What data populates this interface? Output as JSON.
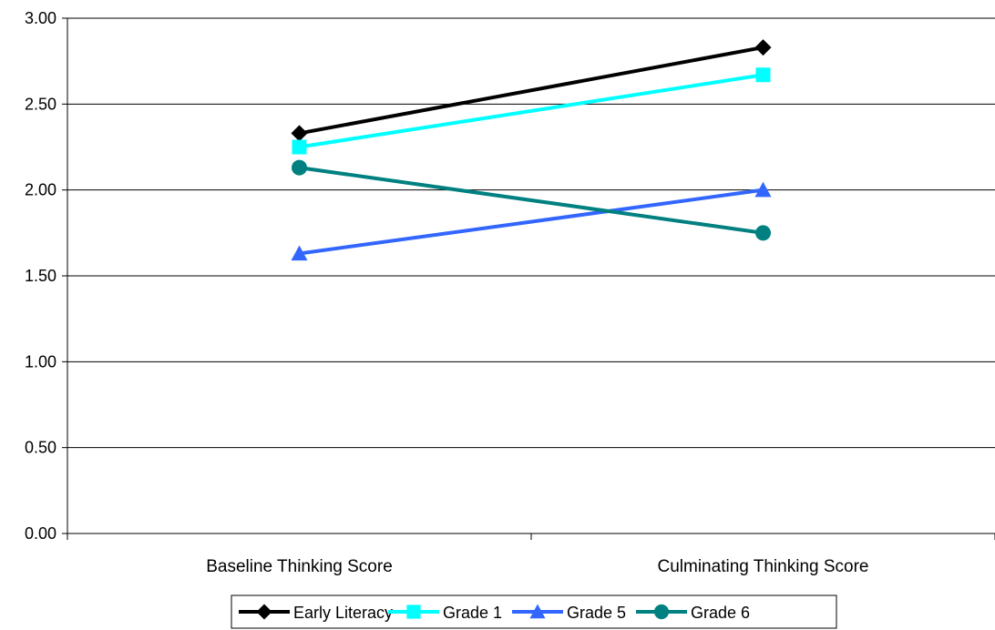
{
  "chart_data": {
    "type": "line",
    "categories": [
      "Baseline Thinking Score",
      "Culminating Thinking Score"
    ],
    "series": [
      {
        "name": "Early Literacy",
        "values": [
          2.33,
          2.83
        ],
        "color": "#000000",
        "marker": "diamond"
      },
      {
        "name": "Grade 1",
        "values": [
          2.25,
          2.67
        ],
        "color": "#00FFFF",
        "marker": "square"
      },
      {
        "name": "Grade 5",
        "values": [
          1.63,
          2.0
        ],
        "color": "#3366FF",
        "marker": "triangle"
      },
      {
        "name": "Grade 6",
        "values": [
          2.13,
          1.75
        ],
        "color": "#008080",
        "marker": "circle"
      }
    ],
    "ylim": [
      0,
      3
    ],
    "yticks": [
      "0.00",
      "0.50",
      "1.00",
      "1.50",
      "2.00",
      "2.50",
      "3.00"
    ],
    "grid": "horizontal",
    "legend_position": "bottom"
  }
}
